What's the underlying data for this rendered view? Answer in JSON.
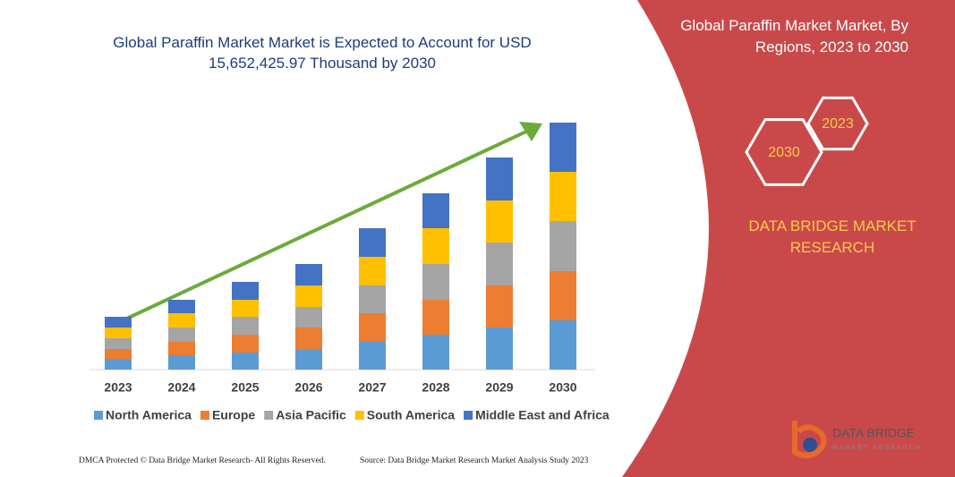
{
  "chart_data": {
    "type": "stacked-bar",
    "title": "Global Paraffin Market Market is Expected to Account for USD 15,652,425.97 Thousand by 2030",
    "categories": [
      "2023",
      "2024",
      "2025",
      "2026",
      "2027",
      "2028",
      "2029",
      "2030"
    ],
    "series": [
      {
        "name": "North America",
        "color": "#5b9bd5",
        "values": [
          12,
          16,
          19,
          23,
          31,
          39,
          47,
          55
        ]
      },
      {
        "name": "Europe",
        "color": "#ed7d31",
        "values": [
          11,
          15,
          20,
          24,
          32,
          39,
          47,
          55
        ]
      },
      {
        "name": "Asia Pacific",
        "color": "#a5a5a5",
        "values": [
          12,
          16,
          20,
          23,
          31,
          40,
          48,
          56
        ]
      },
      {
        "name": "South America",
        "color": "#ffc000",
        "values": [
          12,
          16,
          19,
          24,
          32,
          40,
          47,
          55
        ]
      },
      {
        "name": "Middle East and Africa",
        "color": "#4472c4",
        "values": [
          12,
          15,
          20,
          24,
          32,
          39,
          48,
          55
        ]
      }
    ],
    "ylim": [
      0,
      300
    ],
    "legend": "bottom"
  },
  "panel": {
    "title": "Global Paraffin Market Market, By Regions, 2023 to 2030",
    "hexagons": [
      "2023",
      "2030"
    ],
    "brand": "DATA BRIDGE MARKET RESEARCH"
  },
  "logo": {
    "name": "DATA BRIDGE",
    "tagline": "MARKET RESEARCH"
  },
  "footer": {
    "left": "DMCA Protected © Data Bridge Market Research-  All Rights Reserved.",
    "right": "Source: Data Bridge Market Research  Market Analysis Study 2023"
  }
}
